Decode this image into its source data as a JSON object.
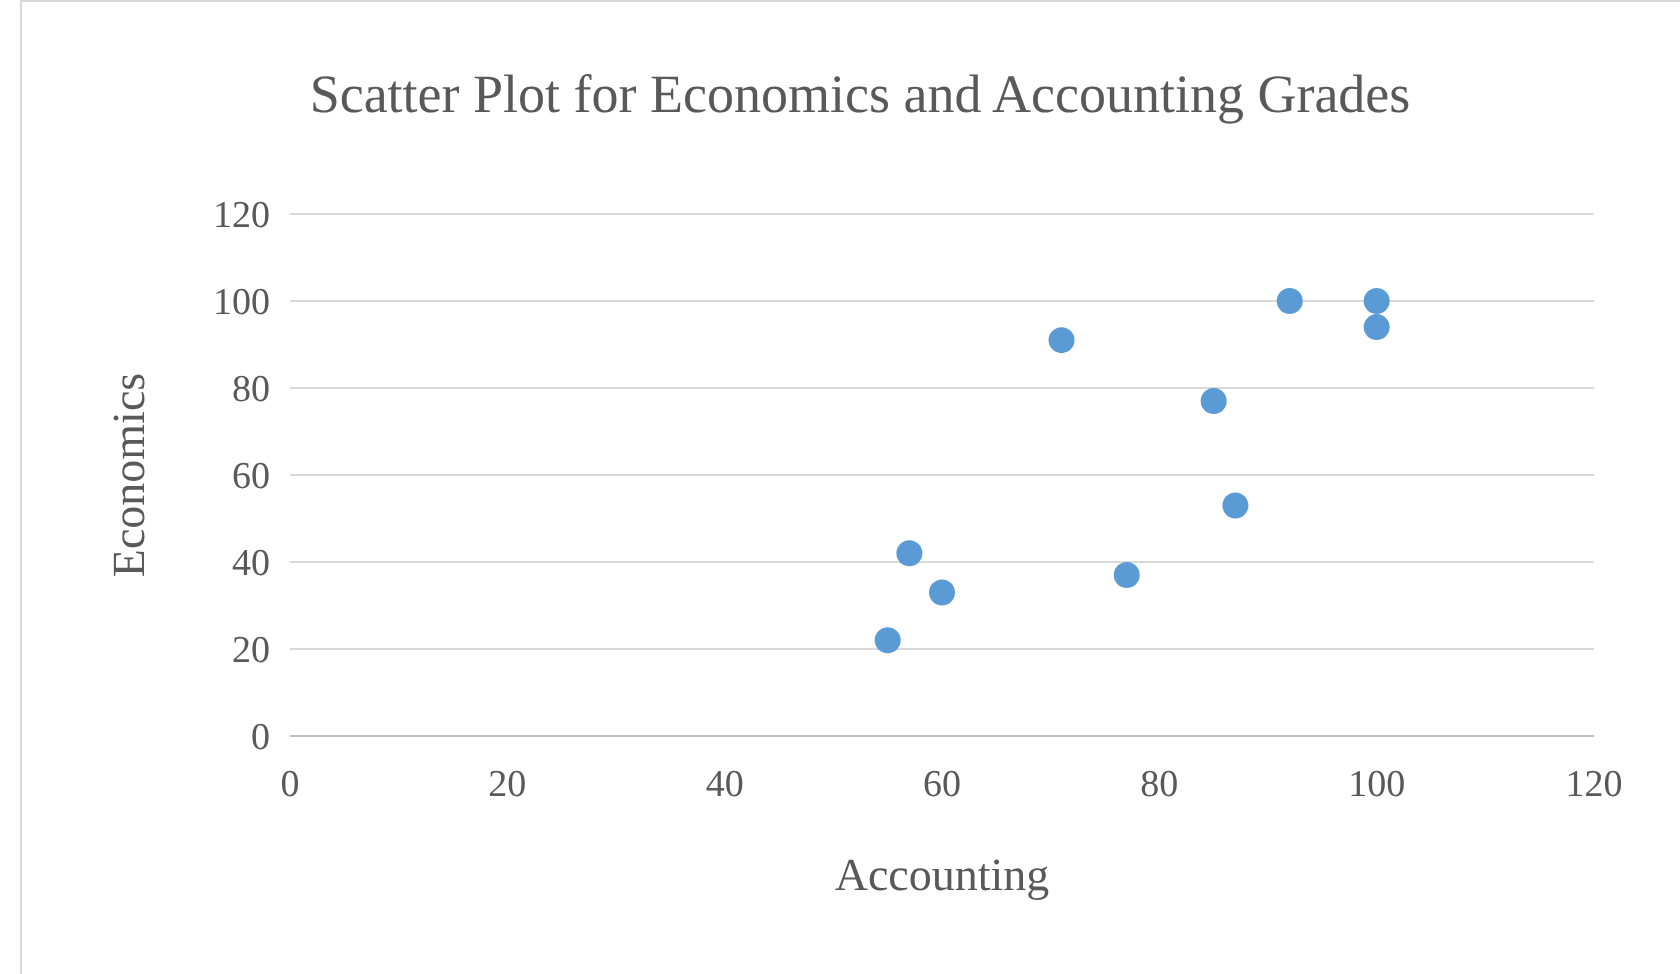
{
  "chart_data": {
    "type": "scatter",
    "title": "Scatter Plot for Economics and Accounting Grades",
    "xlabel": "Accounting",
    "ylabel": "Economics",
    "x": [
      57,
      60,
      55,
      71,
      77,
      85,
      87,
      92,
      100,
      100
    ],
    "values": [
      42,
      33,
      22,
      91,
      37,
      77,
      53,
      100,
      100,
      94
    ],
    "color": "#5b9bd5",
    "marker": "circle",
    "xlim": [
      0,
      120
    ],
    "xticks": [
      0,
      20,
      40,
      60,
      80,
      100,
      120
    ],
    "ylim": [
      0,
      120
    ],
    "yticks": [
      0,
      20,
      40,
      60,
      80,
      100,
      120
    ],
    "grid": "y"
  }
}
